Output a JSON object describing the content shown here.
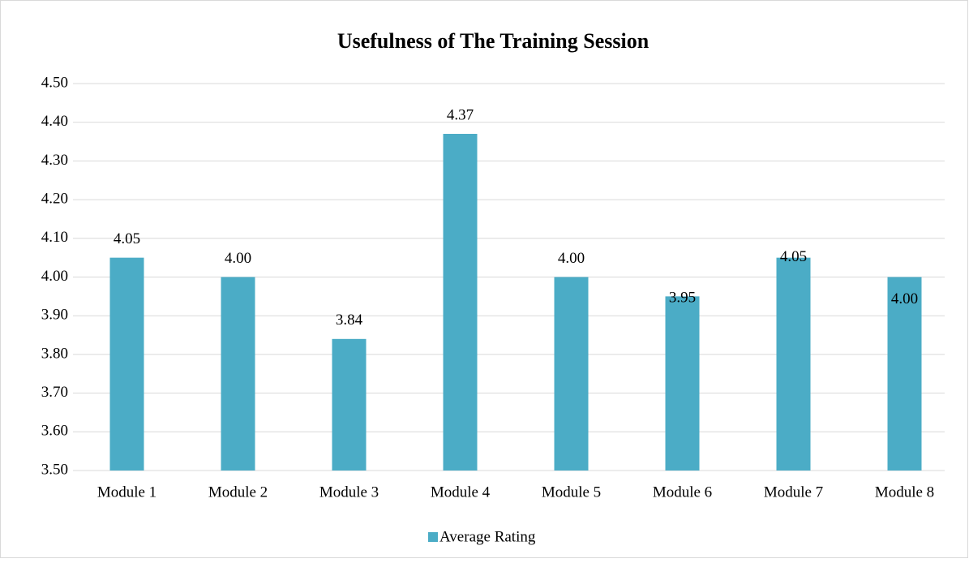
{
  "chart_data": {
    "type": "bar",
    "title": "Usefulness of The Training Session",
    "categories": [
      "Module 1",
      "Module 2",
      "Module 3",
      "Module 4",
      "Module 5",
      "Module 6",
      "Module 7",
      "Module 8"
    ],
    "series": [
      {
        "name": "Average Rating",
        "color": "#4bacc6",
        "values": [
          4.05,
          4.0,
          3.84,
          4.37,
          4.0,
          3.95,
          4.05,
          4.0
        ],
        "value_labels": [
          "4.05",
          "4.00",
          "3.84",
          "4.37",
          "4.00",
          "3.95",
          "4.05",
          "4.00"
        ]
      }
    ],
    "ylim": [
      3.5,
      4.5
    ],
    "yticks": [
      {
        "value": 3.5,
        "label": "3.50"
      },
      {
        "value": 3.6,
        "label": "3.60"
      },
      {
        "value": 3.7,
        "label": "3.70"
      },
      {
        "value": 3.8,
        "label": "3.80"
      },
      {
        "value": 3.9,
        "label": "3.90"
      },
      {
        "value": 4.0,
        "label": "4.00"
      },
      {
        "value": 4.1,
        "label": "4.10"
      },
      {
        "value": 4.2,
        "label": "4.20"
      },
      {
        "value": 4.3,
        "label": "4.30"
      },
      {
        "value": 4.4,
        "label": "4.40"
      },
      {
        "value": 4.5,
        "label": "4.50"
      }
    ],
    "grid": true,
    "legend": "bottom"
  }
}
